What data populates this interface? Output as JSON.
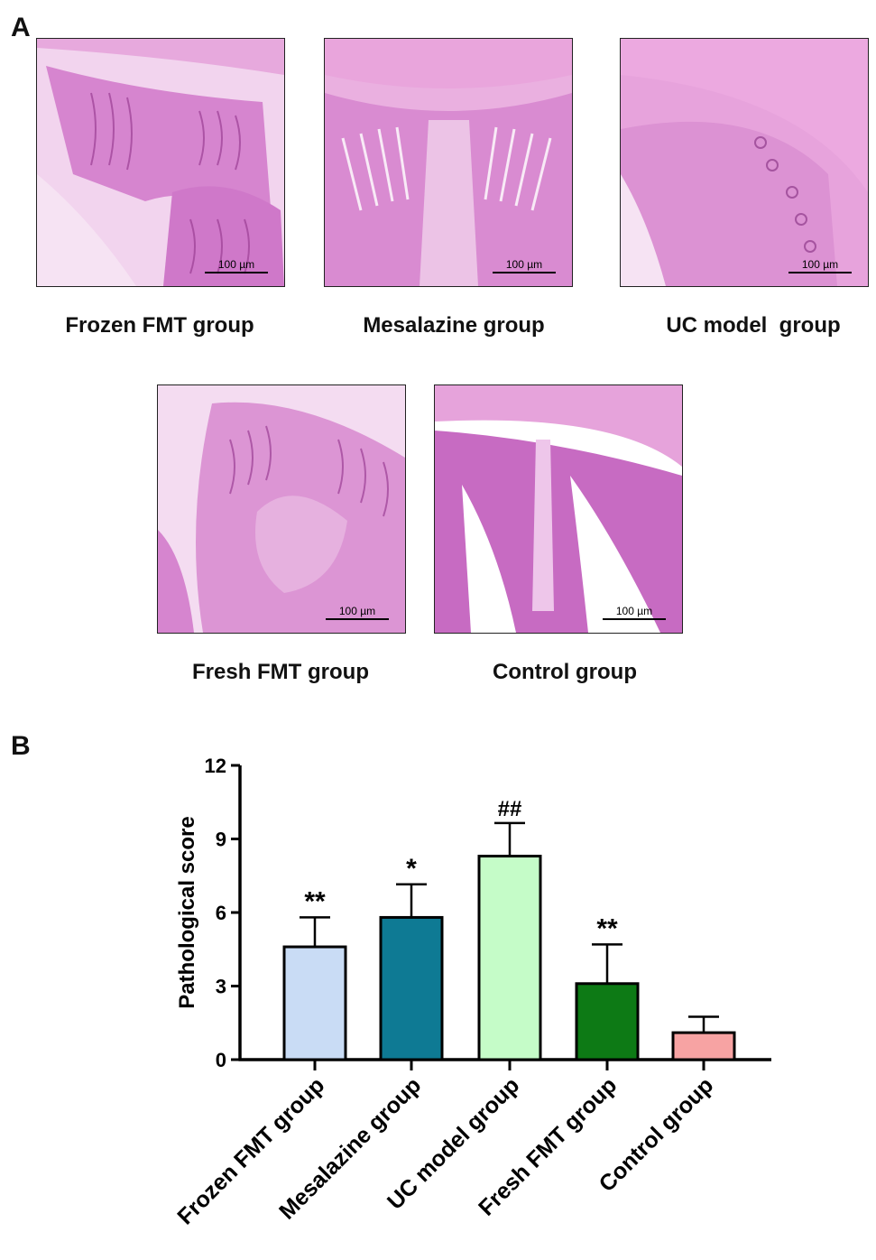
{
  "panel_a": {
    "letter": "A",
    "images": [
      {
        "caption": "Frozen FMT group",
        "scale": "100 µm"
      },
      {
        "caption": "Mesalazine group",
        "scale": "100 µm"
      },
      {
        "caption": "UC model  group",
        "scale": "100 µm"
      },
      {
        "caption": "Fresh FMT group",
        "scale": "100 µm"
      },
      {
        "caption": "Control group",
        "scale": "100 µm"
      }
    ]
  },
  "panel_b": {
    "letter": "B"
  },
  "chart_data": {
    "type": "bar",
    "title": "",
    "xlabel": "",
    "ylabel": "Pathological score",
    "ylim": [
      0,
      12
    ],
    "yticks": [
      0,
      3,
      6,
      9,
      12
    ],
    "categories": [
      "Frozen FMT group",
      "Mesalazine group",
      "UC model group",
      "Fresh FMT group",
      "Control group"
    ],
    "values": [
      4.6,
      5.8,
      8.3,
      3.1,
      1.1
    ],
    "errors": [
      1.2,
      1.35,
      1.35,
      1.6,
      0.65
    ],
    "annotations": [
      "**",
      "*",
      "##",
      "**",
      ""
    ],
    "colors": [
      "#c9dcf5",
      "#0e7a94",
      "#c5fcc8",
      "#0d7a15",
      "#f7a3a3"
    ]
  }
}
